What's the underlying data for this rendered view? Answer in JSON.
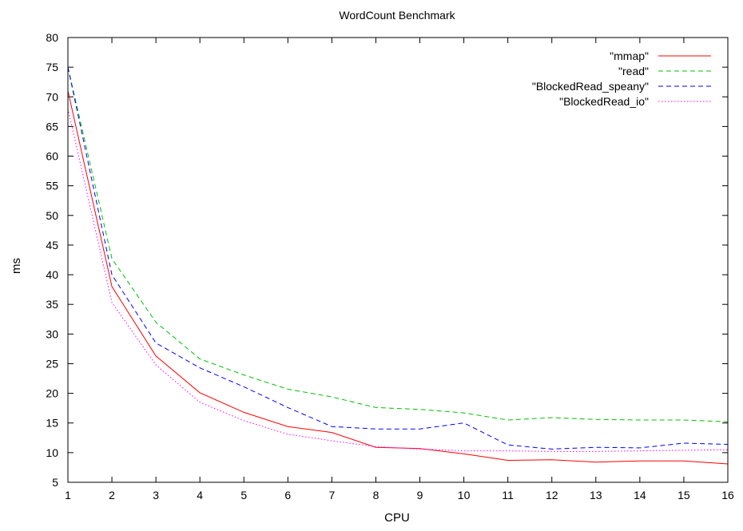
{
  "chart_data": {
    "type": "line",
    "title": "WordCount Benchmark",
    "xlabel": "CPU",
    "ylabel": "ms",
    "xlim": [
      1,
      16
    ],
    "ylim": [
      5,
      80
    ],
    "x": [
      1,
      2,
      3,
      4,
      5,
      6,
      7,
      8,
      9,
      10,
      11,
      12,
      13,
      14,
      15,
      16
    ],
    "xticks": [
      "1",
      "2",
      "3",
      "4",
      "5",
      "6",
      "7",
      "8",
      "9",
      "10",
      "11",
      "12",
      "13",
      "14",
      "15",
      "16"
    ],
    "yticks": [
      5,
      10,
      15,
      20,
      25,
      30,
      35,
      40,
      45,
      50,
      55,
      60,
      65,
      70,
      75,
      80
    ],
    "grid": false,
    "legend_position": "top-right",
    "series": [
      {
        "name": "\"mmap\"",
        "color": "#ff0000",
        "dash": "solid",
        "values": [
          71.0,
          38.0,
          26.3,
          20.1,
          16.8,
          14.4,
          13.4,
          10.9,
          10.7,
          9.8,
          8.7,
          8.8,
          8.4,
          8.6,
          8.6,
          8.1
        ]
      },
      {
        "name": "\"read\"",
        "color": "#00c000",
        "dash": "dashed",
        "values": [
          75.0,
          42.7,
          32.0,
          25.8,
          23.1,
          20.7,
          19.4,
          17.6,
          17.3,
          16.7,
          15.5,
          15.9,
          15.6,
          15.5,
          15.5,
          15.2
        ]
      },
      {
        "name": "\"BlockedRead_speany\"",
        "color": "#0000ff",
        "dash": "dashed",
        "values": [
          75.0,
          40.0,
          28.5,
          24.3,
          21.1,
          17.6,
          14.4,
          14.0,
          14.0,
          15.0,
          11.3,
          10.6,
          10.9,
          10.8,
          11.6,
          11.4
        ]
      },
      {
        "name": "\"BlockedRead_io\"",
        "color": "#ff00ff",
        "dash": "dotted",
        "values": [
          68.0,
          35.3,
          24.8,
          18.5,
          15.4,
          13.1,
          12.0,
          11.0,
          10.6,
          10.3,
          10.3,
          10.2,
          10.2,
          10.3,
          10.4,
          10.5
        ]
      }
    ]
  }
}
